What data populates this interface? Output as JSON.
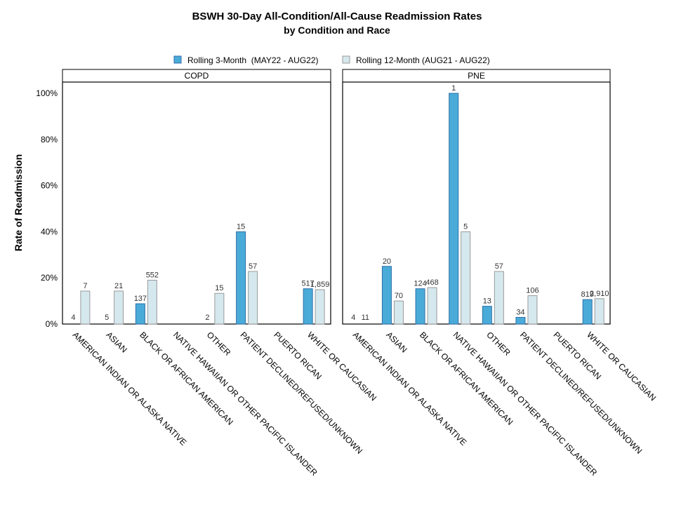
{
  "colors": {
    "rolling3": "#4aabd8",
    "rolling3_stroke": "#2f6fa8",
    "rolling12": "#d5e8ee",
    "rolling12_stroke": "#9a9a9a"
  },
  "chart_data": {
    "type": "bar",
    "title": "BSWH 30-Day All-Condition/All-Cause Readmission Rates",
    "subtitle": "by Condition and Race",
    "ylabel": "Rate of Readmission",
    "ylim": [
      0,
      100
    ],
    "yticks": [
      "0%",
      "20%",
      "40%",
      "60%",
      "80%",
      "100%"
    ],
    "ytick_values": [
      0,
      20,
      40,
      60,
      80,
      100
    ],
    "legend": {
      "placement": "top-center",
      "entries": [
        "Rolling 3-Month  (MAY22 - AUG22)",
        "Rolling 12-Month (AUG21 - AUG22)"
      ]
    },
    "categories": [
      "AMERICAN INDIAN OR ALASKA NATIVE",
      "ASIAN",
      "BLACK OR AFRICAN AMERICAN",
      "NATIVE HAWAIIAN OR OTHER PACIFIC ISLANDER",
      "OTHER",
      "PATIENT DECLINED/REFUSED/UNKNOWN",
      "PUERTO RICAN",
      "WHITE OR CAUCASIAN"
    ],
    "panels": [
      {
        "name": "COPD",
        "series": [
          {
            "name": "Rolling 3-Month  (MAY22 - AUG22)",
            "values": [
              0,
              0,
              8.8,
              null,
              0,
              40,
              null,
              15.3
            ],
            "labels": [
              "4",
              "5",
              "137",
              "",
              "2",
              "15",
              "",
              "517"
            ]
          },
          {
            "name": "Rolling 12-Month (AUG21 - AUG22)",
            "values": [
              14.3,
              14.3,
              19,
              null,
              13.3,
              22.8,
              null,
              14.9
            ],
            "labels": [
              "7",
              "21",
              "552",
              "",
              "15",
              "57",
              "",
              "1,859"
            ]
          }
        ]
      },
      {
        "name": "PNE",
        "series": [
          {
            "name": "Rolling 3-Month  (MAY22 - AUG22)",
            "values": [
              0,
              25,
              15.3,
              100,
              7.7,
              2.9,
              null,
              10.6
            ],
            "labels": [
              "4",
              "20",
              "124",
              "1",
              "13",
              "34",
              "",
              "819"
            ]
          },
          {
            "name": "Rolling 12-Month (AUG21 - AUG22)",
            "values": [
              0,
              10,
              15.8,
              40,
              22.8,
              12.3,
              null,
              11
            ],
            "labels": [
              "11",
              "70",
              "468",
              "5",
              "57",
              "106",
              "",
              "2,910"
            ]
          }
        ]
      }
    ]
  }
}
